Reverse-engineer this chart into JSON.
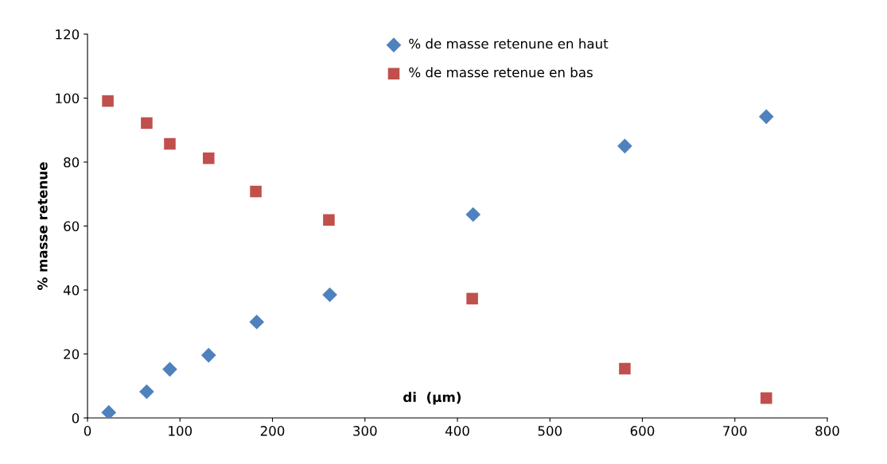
{
  "chart_data": {
    "type": "scatter",
    "xlabel": "di  (µm)",
    "ylabel": "% masse retenue",
    "xlim": [
      0,
      800
    ],
    "xticks": [
      0,
      100,
      200,
      300,
      400,
      500,
      600,
      700,
      800
    ],
    "ylim": [
      0,
      120
    ],
    "yticks": [
      0,
      20,
      40,
      60,
      80,
      100,
      120
    ],
    "grid": false,
    "legend": "top",
    "series": [
      {
        "name": "% de masse retenune en haut",
        "color": "#4f81bd",
        "marker": "diamond",
        "x": [
          23,
          64,
          89,
          131,
          183,
          262,
          417,
          581,
          734
        ],
        "values": [
          1.7,
          8.2,
          15.2,
          19.6,
          30,
          38.5,
          63.6,
          85,
          94.2
        ]
      },
      {
        "name": "% de masse retenue en bas",
        "color": "#c0504d",
        "marker": "square",
        "x": [
          22,
          64,
          89,
          131,
          182,
          261,
          416,
          581,
          734
        ],
        "values": [
          99.1,
          92.2,
          85.7,
          81.2,
          70.8,
          61.9,
          37.3,
          15.4,
          6.2
        ]
      }
    ]
  }
}
